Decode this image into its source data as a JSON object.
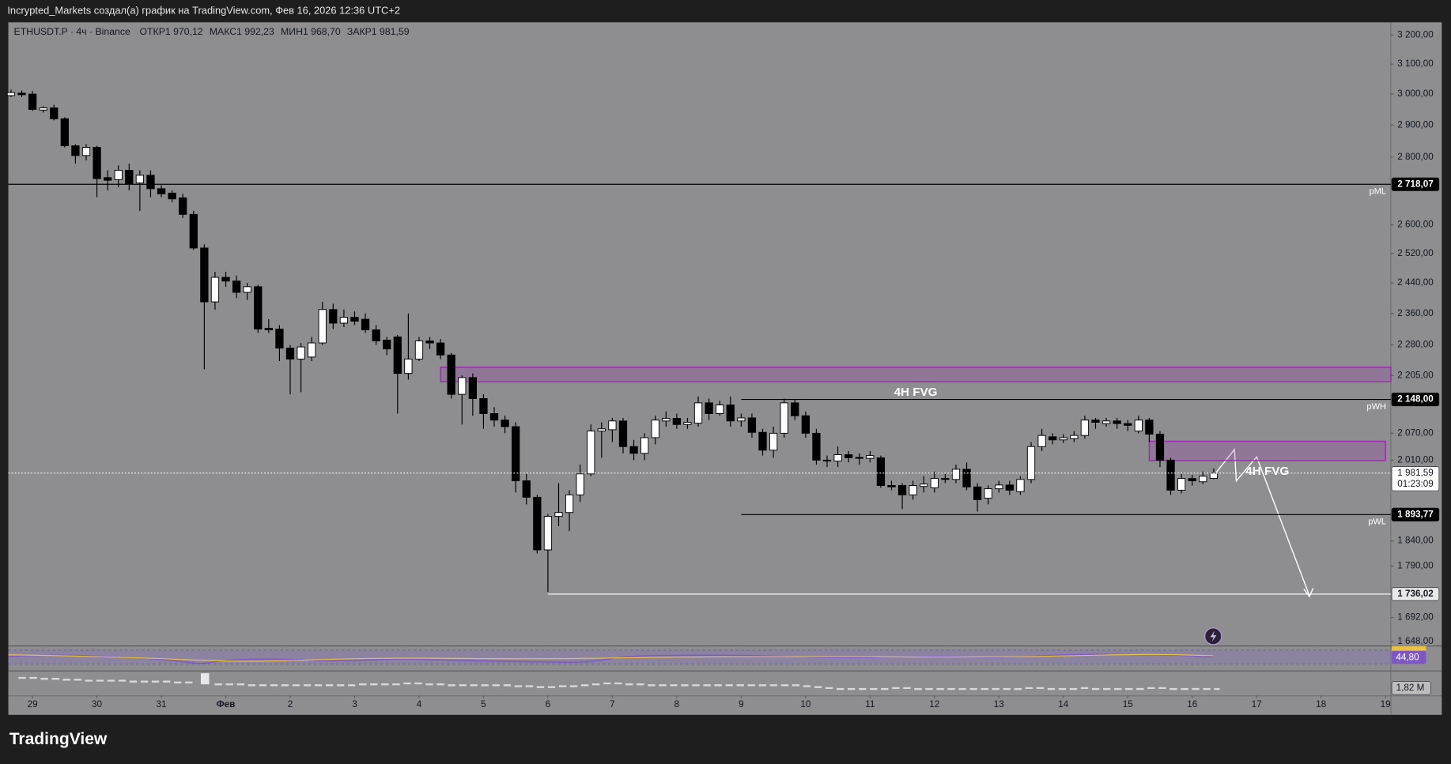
{
  "header": {
    "author_line": "Incrypted_Markets создал(а) график на TradingView.com, Фев 16, 2026 12:36 UTC+2",
    "brand": "TradingView"
  },
  "chart_data": {
    "type": "candlestick",
    "symbol": "ETHUSDT.P · 4ч · Binance",
    "legend": [
      {
        "key": "ОТКР",
        "value": "1 970,12"
      },
      {
        "key": "МАКС",
        "value": "1 992,23"
      },
      {
        "key": "МИН",
        "value": "1 968,70"
      },
      {
        "key": "ЗАКР",
        "value": "1 981,59"
      }
    ],
    "log": true,
    "up_color": "#ffffff",
    "down_color": "#000000",
    "wick_color": "#000000",
    "xlim": [
      -9,
      506
    ],
    "xticks": [
      {
        "value": 0,
        "label": "29"
      },
      {
        "value": 24,
        "label": "30"
      },
      {
        "value": 48,
        "label": "31"
      },
      {
        "value": 72,
        "label": "Фев"
      },
      {
        "value": 96,
        "label": "2"
      },
      {
        "value": 120,
        "label": "3"
      },
      {
        "value": 144,
        "label": "4"
      },
      {
        "value": 168,
        "label": "5"
      },
      {
        "value": 192,
        "label": "6"
      },
      {
        "value": 216,
        "label": "7"
      },
      {
        "value": 240,
        "label": "8"
      },
      {
        "value": 264,
        "label": "9"
      },
      {
        "value": 288,
        "label": "10"
      },
      {
        "value": 312,
        "label": "11"
      },
      {
        "value": 336,
        "label": "12"
      },
      {
        "value": 360,
        "label": "13"
      },
      {
        "value": 384,
        "label": "14"
      },
      {
        "value": 408,
        "label": "15"
      },
      {
        "value": 432,
        "label": "16"
      },
      {
        "value": 456,
        "label": "17"
      },
      {
        "value": 480,
        "label": "18"
      },
      {
        "value": 504,
        "label": "19"
      }
    ],
    "ylim": [
      1641,
      3245
    ],
    "yticks": [
      {
        "value": 3200,
        "label": "3 200,00"
      },
      {
        "value": 3100,
        "label": "3 100,00"
      },
      {
        "value": 3000,
        "label": "3 000,00"
      },
      {
        "value": 2900,
        "label": "2 900,00"
      },
      {
        "value": 2800,
        "label": "2 800,00"
      },
      {
        "value": 2600,
        "label": "2 600,00"
      },
      {
        "value": 2520,
        "label": "2 520,00"
      },
      {
        "value": 2440,
        "label": "2 440,00"
      },
      {
        "value": 2360,
        "label": "2 360,00"
      },
      {
        "value": 2280,
        "label": "2 280,00"
      },
      {
        "value": 2205,
        "label": "2 205,00"
      },
      {
        "value": 2070,
        "label": "2 070,00"
      },
      {
        "value": 2010,
        "label": "2 010,00"
      },
      {
        "value": 1840,
        "label": "1 840,00"
      },
      {
        "value": 1790,
        "label": "1 790,00"
      },
      {
        "value": 1692,
        "label": "1 692,00"
      },
      {
        "value": 1648,
        "label": "1 648,00"
      }
    ],
    "x": [
      -8,
      -4,
      0,
      4,
      8,
      12,
      16,
      20,
      24,
      28,
      32,
      36,
      40,
      44,
      48,
      52,
      56,
      60,
      64,
      68,
      72,
      76,
      80,
      84,
      88,
      92,
      96,
      100,
      104,
      108,
      112,
      116,
      120,
      124,
      128,
      132,
      136,
      140,
      144,
      148,
      152,
      156,
      160,
      164,
      168,
      172,
      176,
      180,
      184,
      188,
      192,
      196,
      200,
      204,
      208,
      212,
      216,
      220,
      224,
      228,
      232,
      236,
      240,
      244,
      248,
      252,
      256,
      260,
      264,
      268,
      272,
      276,
      280,
      284,
      288,
      292,
      296,
      300,
      304,
      308,
      312,
      316,
      320,
      324,
      328,
      332,
      336,
      340,
      344,
      348,
      352,
      356,
      360,
      364,
      368,
      372,
      376,
      380,
      384,
      388,
      392,
      396,
      400,
      404,
      408,
      412,
      416,
      420,
      424,
      428,
      432,
      436,
      440
    ],
    "open": [
      2995,
      3003,
      3000,
      2948,
      2955,
      2920,
      2835,
      2805,
      2830,
      2738,
      2732,
      2760,
      2722,
      2745,
      2705,
      2692,
      2678,
      2630,
      2535,
      2390,
      2455,
      2445,
      2415,
      2430,
      2322,
      2320,
      2272,
      2245,
      2250,
      2285,
      2370,
      2335,
      2350,
      2345,
      2318,
      2292,
      2300,
      2210,
      2245,
      2290,
      2285,
      2255,
      2160,
      2200,
      2150,
      2115,
      2100,
      2085,
      1965,
      1930,
      1822,
      1890,
      1898,
      1935,
      1980,
      2075,
      2078,
      2098,
      2040,
      2025,
      2060,
      2098,
      2104,
      2090,
      2093,
      2140,
      2115,
      2135,
      2098,
      2105,
      2072,
      2032,
      2070,
      2140,
      2110,
      2070,
      2010,
      2008,
      2022,
      2016,
      2014,
      2015,
      1955,
      1955,
      1935,
      1953,
      1950,
      1970,
      1968,
      1990,
      1952,
      1928,
      1948,
      1956,
      1942,
      1968,
      2040,
      2062,
      2055,
      2058,
      2065,
      2100,
      2092,
      2098,
      2092,
      2075,
      2100,
      2068,
      2010,
      1945,
      1970,
      1963,
      1970.12
    ],
    "high": [
      3015,
      3012,
      3010,
      2960,
      2965,
      2925,
      2840,
      2840,
      2835,
      2760,
      2775,
      2780,
      2760,
      2760,
      2715,
      2700,
      2690,
      2640,
      2545,
      2470,
      2470,
      2460,
      2440,
      2435,
      2345,
      2330,
      2280,
      2285,
      2300,
      2390,
      2385,
      2370,
      2365,
      2360,
      2330,
      2300,
      2305,
      2360,
      2300,
      2300,
      2295,
      2260,
      2205,
      2210,
      2160,
      2130,
      2110,
      2095,
      1980,
      1935,
      1895,
      1960,
      1945,
      2000,
      2090,
      2095,
      2105,
      2105,
      2055,
      2070,
      2110,
      2120,
      2115,
      2105,
      2155,
      2150,
      2145,
      2155,
      2115,
      2115,
      2080,
      2085,
      2150,
      2148,
      2120,
      2080,
      2020,
      2040,
      2030,
      2025,
      2030,
      2020,
      1965,
      1960,
      1965,
      1975,
      1985,
      1980,
      2000,
      2005,
      1960,
      1955,
      1965,
      1965,
      1975,
      2050,
      2080,
      2070,
      2068,
      2075,
      2110,
      2105,
      2105,
      2105,
      2100,
      2110,
      2105,
      2075,
      2015,
      1980,
      1978,
      1985,
      1992.23
    ],
    "low": [
      2990,
      2990,
      2945,
      2940,
      2915,
      2830,
      2780,
      2790,
      2680,
      2700,
      2710,
      2700,
      2640,
      2680,
      2680,
      2665,
      2620,
      2530,
      2220,
      2370,
      2430,
      2400,
      2395,
      2310,
      2310,
      2240,
      2160,
      2165,
      2240,
      2280,
      2320,
      2325,
      2330,
      2310,
      2280,
      2255,
      2115,
      2195,
      2240,
      2270,
      2245,
      2150,
      2090,
      2110,
      2080,
      2085,
      2070,
      1940,
      1915,
      1815,
      1740,
      1870,
      1860,
      1920,
      1975,
      2015,
      2050,
      2025,
      2010,
      2010,
      2045,
      2085,
      2080,
      2080,
      2085,
      2100,
      2110,
      2085,
      2085,
      2060,
      2020,
      2015,
      2060,
      2100,
      2060,
      2000,
      1995,
      1995,
      2005,
      2000,
      2005,
      1950,
      1945,
      1905,
      1925,
      1940,
      1940,
      1960,
      1960,
      1945,
      1900,
      1915,
      1940,
      1935,
      1935,
      1960,
      2030,
      2045,
      2048,
      2050,
      2058,
      2080,
      2085,
      2080,
      2075,
      2070,
      2050,
      1995,
      1935,
      1938,
      1955,
      1958,
      1968.7
    ],
    "close": [
      3005,
      2998,
      2950,
      2955,
      2920,
      2835,
      2805,
      2830,
      2735,
      2730,
      2760,
      2720,
      2745,
      2705,
      2690,
      2675,
      2630,
      2535,
      2390,
      2455,
      2445,
      2415,
      2430,
      2320,
      2318,
      2272,
      2245,
      2275,
      2285,
      2370,
      2335,
      2350,
      2340,
      2318,
      2290,
      2270,
      2210,
      2245,
      2290,
      2285,
      2255,
      2160,
      2200,
      2150,
      2115,
      2100,
      2085,
      1965,
      1930,
      1822,
      1890,
      1898,
      1935,
      1980,
      2075,
      2080,
      2098,
      2040,
      2025,
      2060,
      2100,
      2104,
      2090,
      2095,
      2140,
      2115,
      2135,
      2098,
      2105,
      2072,
      2032,
      2070,
      2140,
      2110,
      2070,
      2010,
      2008,
      2022,
      2015,
      2014,
      2020,
      1955,
      1952,
      1935,
      1955,
      1958,
      1970,
      1968,
      1990,
      1952,
      1925,
      1948,
      1956,
      1945,
      1968,
      2040,
      2065,
      2055,
      2060,
      2065,
      2100,
      2095,
      2098,
      2092,
      2088,
      2100,
      2068,
      2010,
      1945,
      1970,
      1965,
      1975,
      1981.59
    ],
    "levels": [
      {
        "value": 2718.07,
        "label": "2 718,07",
        "name": "pML",
        "color": "#000000"
      },
      {
        "value": 2148,
        "label": "2 148,00",
        "name": "pWH",
        "color": "#000000",
        "start": 264
      },
      {
        "value": 1893.77,
        "label": "1 893,77",
        "name": "pWL",
        "color": "#000000",
        "start": 264
      },
      {
        "value": 1736.02,
        "label": "1 736,02",
        "color": "#ffffff",
        "start": 192
      }
    ],
    "zones": [
      {
        "label": "4H FVG",
        "low": 2190,
        "high": 2225,
        "start": 152
      },
      {
        "label": "4H FVG",
        "low": 2009,
        "high": 2052,
        "start": 416,
        "end": 504
      }
    ],
    "current_price": {
      "value": 1981.59,
      "label": "1 981,59",
      "countdown": "01:23:09"
    },
    "rsi_label": "44,80",
    "volume_label": "1,82 M"
  }
}
